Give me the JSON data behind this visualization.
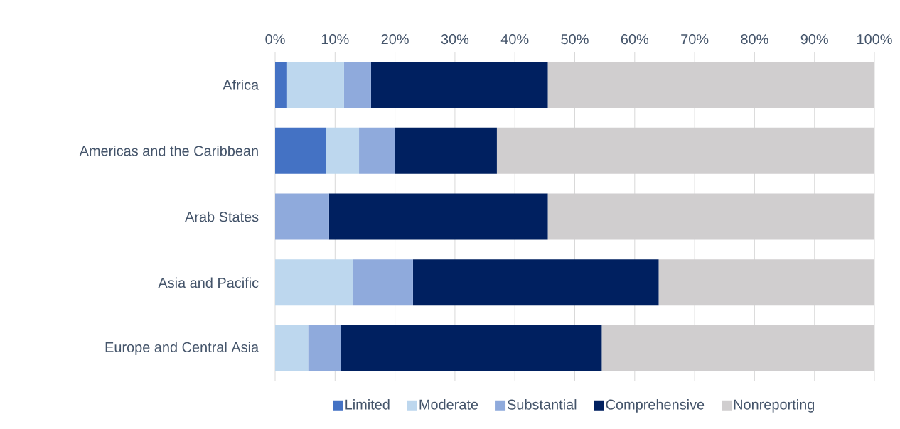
{
  "chart_data": {
    "type": "bar",
    "orientation": "horizontal",
    "stacked": true,
    "categories": [
      "Africa",
      "Americas and the Caribbean",
      "Arab States",
      "Asia and Pacific",
      "Europe and Central Asia"
    ],
    "series": [
      {
        "name": "Limited",
        "color": "#4472c4",
        "values": [
          2,
          8.5,
          0,
          0,
          0
        ]
      },
      {
        "name": "Moderate",
        "color": "#bdd7ee",
        "values": [
          9.5,
          5.5,
          0,
          13,
          5.5
        ]
      },
      {
        "name": "Substantial",
        "color": "#8faadc",
        "values": [
          4.5,
          6,
          9,
          10,
          5.5
        ]
      },
      {
        "name": "Comprehensive",
        "color": "#002060",
        "values": [
          29.5,
          17,
          36.5,
          41,
          43.5
        ]
      },
      {
        "name": "Nonreporting",
        "color": "#d0cecf",
        "values": [
          54.5,
          63,
          54.5,
          36,
          45.5
        ]
      }
    ],
    "xlim": [
      0,
      100
    ],
    "xticks": [
      {
        "value": 0,
        "label": "0%"
      },
      {
        "value": 10,
        "label": "10%"
      },
      {
        "value": 20,
        "label": "20%"
      },
      {
        "value": 30,
        "label": "30%"
      },
      {
        "value": 40,
        "label": "40%"
      },
      {
        "value": 50,
        "label": "50%"
      },
      {
        "value": 60,
        "label": "60%"
      },
      {
        "value": 70,
        "label": "70%"
      },
      {
        "value": 80,
        "label": "80%"
      },
      {
        "value": 90,
        "label": "90%"
      },
      {
        "value": 100,
        "label": "100%"
      }
    ],
    "grid": "x",
    "legend": "bottom"
  }
}
